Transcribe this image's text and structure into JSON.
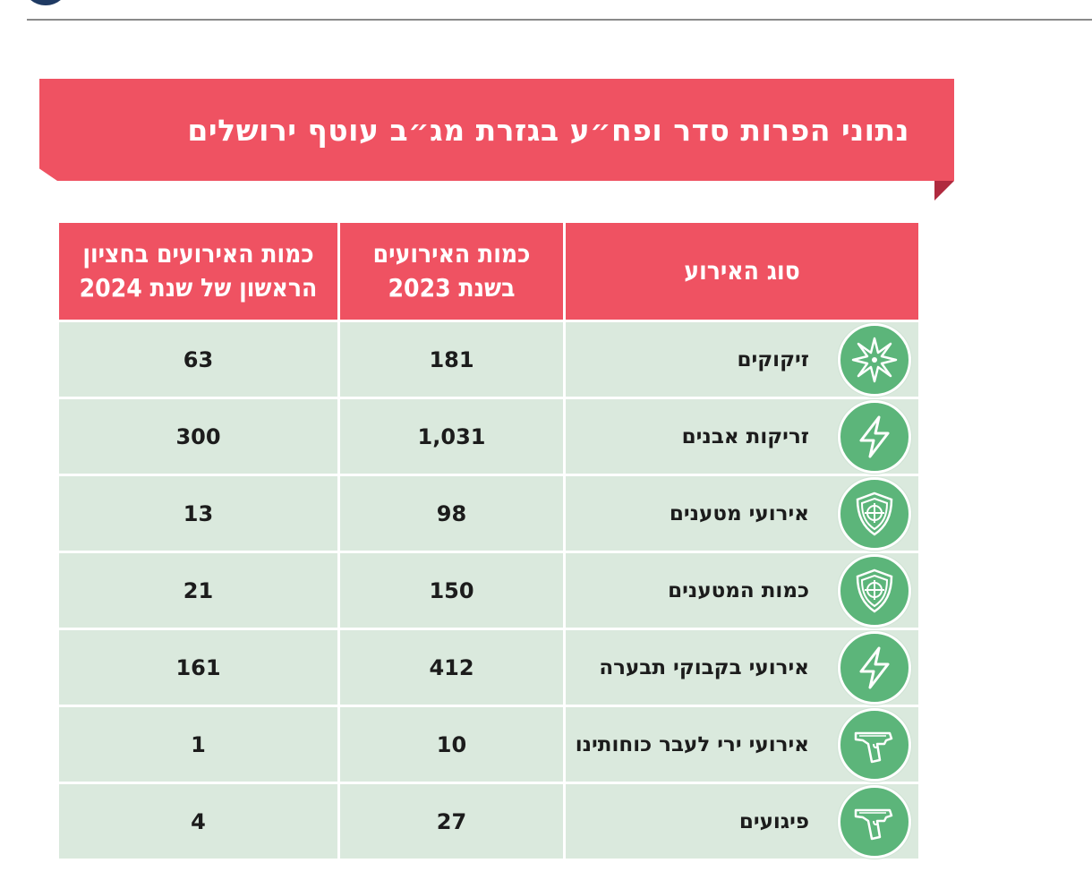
{
  "banner": {
    "title": "נתוני הפרות סדר ופח״ע בגזרת מג״ב עוטף ירושלים"
  },
  "table": {
    "headers": {
      "type": "סוג האירוע",
      "year2023": "כמות האירועים בשנת 2023",
      "h1_2024": "כמות האירועים בחציון הראשון של שנת 2024"
    },
    "rows": [
      {
        "icon": "firework-star-icon",
        "type": "זיקוקים",
        "year2023": "181",
        "h1_2024": "63"
      },
      {
        "icon": "lightning-icon",
        "type": "זריקות אבנים",
        "year2023": "1,031",
        "h1_2024": "300"
      },
      {
        "icon": "target-shield-icon",
        "type": "אירועי מטענים",
        "year2023": "98",
        "h1_2024": "13"
      },
      {
        "icon": "target-shield-icon",
        "type": "כמות המטענים",
        "year2023": "150",
        "h1_2024": "21"
      },
      {
        "icon": "lightning-icon",
        "type": "אירועי בקבוקי תבערה",
        "year2023": "412",
        "h1_2024": "161"
      },
      {
        "icon": "pistol-icon",
        "type": "אירועי ירי לעבר כוחותינו",
        "year2023": "10",
        "h1_2024": "1"
      },
      {
        "icon": "pistol-icon",
        "type": "פיגועים",
        "year2023": "27",
        "h1_2024": "4"
      }
    ]
  },
  "colors": {
    "accent": "#ef5262",
    "row_bg": "#dae9dd",
    "icon_bg": "#5cb57a"
  }
}
